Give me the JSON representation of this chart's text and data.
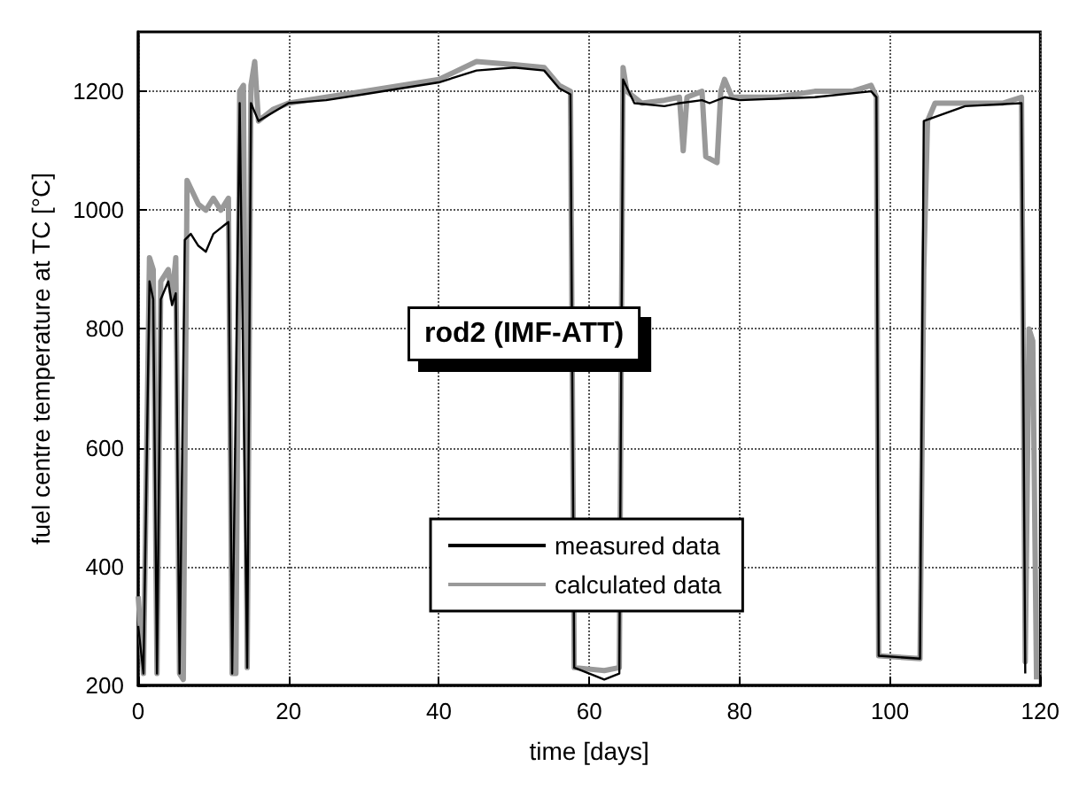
{
  "chart_data": {
    "type": "line",
    "xlabel": "time [days]",
    "ylabel": "fuel centre temperature at TC [°C]",
    "annotations": [
      "rod2 (IMF-ATT)"
    ],
    "xlim": [
      0,
      120
    ],
    "xticks": [
      0,
      20,
      40,
      60,
      80,
      100,
      120
    ],
    "ylim": [
      200,
      1300
    ],
    "yticks": [
      200,
      400,
      600,
      800,
      1000,
      1200
    ],
    "grid": true,
    "legend": "bottom",
    "line_style": "solid",
    "marker": "none",
    "series": [
      {
        "name": "measured data",
        "color": "#000000",
        "x": [
          0,
          0.7,
          1.5,
          2,
          2.5,
          3,
          4,
          4.5,
          5,
          5.5,
          6.2,
          7,
          8,
          9,
          10,
          11,
          12,
          12.5,
          13.5,
          14.5,
          15,
          16,
          20,
          25,
          30,
          35,
          40,
          45,
          50,
          54,
          56,
          57.5,
          58,
          62,
          64,
          64.5,
          66,
          70,
          72,
          75,
          76,
          78,
          80,
          90,
          97.5,
          98.2,
          98.5,
          104,
          104.5,
          110,
          117.5,
          118
        ],
        "values": [
          300,
          220,
          880,
          850,
          220,
          850,
          880,
          840,
          860,
          220,
          950,
          960,
          940,
          930,
          960,
          970,
          980,
          220,
          1180,
          230,
          1180,
          1150,
          1180,
          1185,
          1195,
          1205,
          1215,
          1235,
          1240,
          1235,
          1205,
          1195,
          230,
          210,
          220,
          1220,
          1180,
          1175,
          1180,
          1185,
          1180,
          1190,
          1185,
          1190,
          1200,
          1190,
          250,
          245,
          1150,
          1175,
          1180,
          220
        ]
      },
      {
        "name": "calculated data",
        "color": "#999999",
        "x": [
          0,
          0.7,
          1.5,
          2,
          2.5,
          3,
          4,
          4.5,
          5,
          5.5,
          6,
          6.5,
          8,
          9,
          10,
          11,
          12,
          12.5,
          13,
          13.5,
          14,
          14.5,
          15,
          15.5,
          16,
          18,
          20,
          25,
          30,
          35,
          40,
          45,
          50,
          54,
          56,
          57.5,
          58,
          62,
          64,
          64.5,
          65,
          67,
          70,
          72,
          72.5,
          73,
          75,
          75.5,
          77,
          77.5,
          78,
          79,
          85,
          90,
          95,
          97.5,
          98.2,
          98.5,
          104,
          104.5,
          105,
          106,
          110,
          115,
          117.5,
          118,
          118.5,
          119,
          119.5
        ],
        "values": [
          350,
          220,
          920,
          900,
          220,
          880,
          900,
          850,
          920,
          220,
          210,
          1050,
          1010,
          1000,
          1020,
          1000,
          1020,
          220,
          220,
          1200,
          1210,
          230,
          1210,
          1250,
          1150,
          1170,
          1180,
          1190,
          1200,
          1210,
          1220,
          1250,
          1245,
          1240,
          1210,
          1200,
          230,
          225,
          230,
          1240,
          1200,
          1180,
          1185,
          1190,
          1100,
          1190,
          1200,
          1090,
          1080,
          1200,
          1220,
          1190,
          1190,
          1200,
          1200,
          1210,
          1190,
          250,
          245,
          900,
          1150,
          1180,
          1180,
          1180,
          1190,
          240,
          800,
          780,
          210
        ]
      }
    ]
  }
}
